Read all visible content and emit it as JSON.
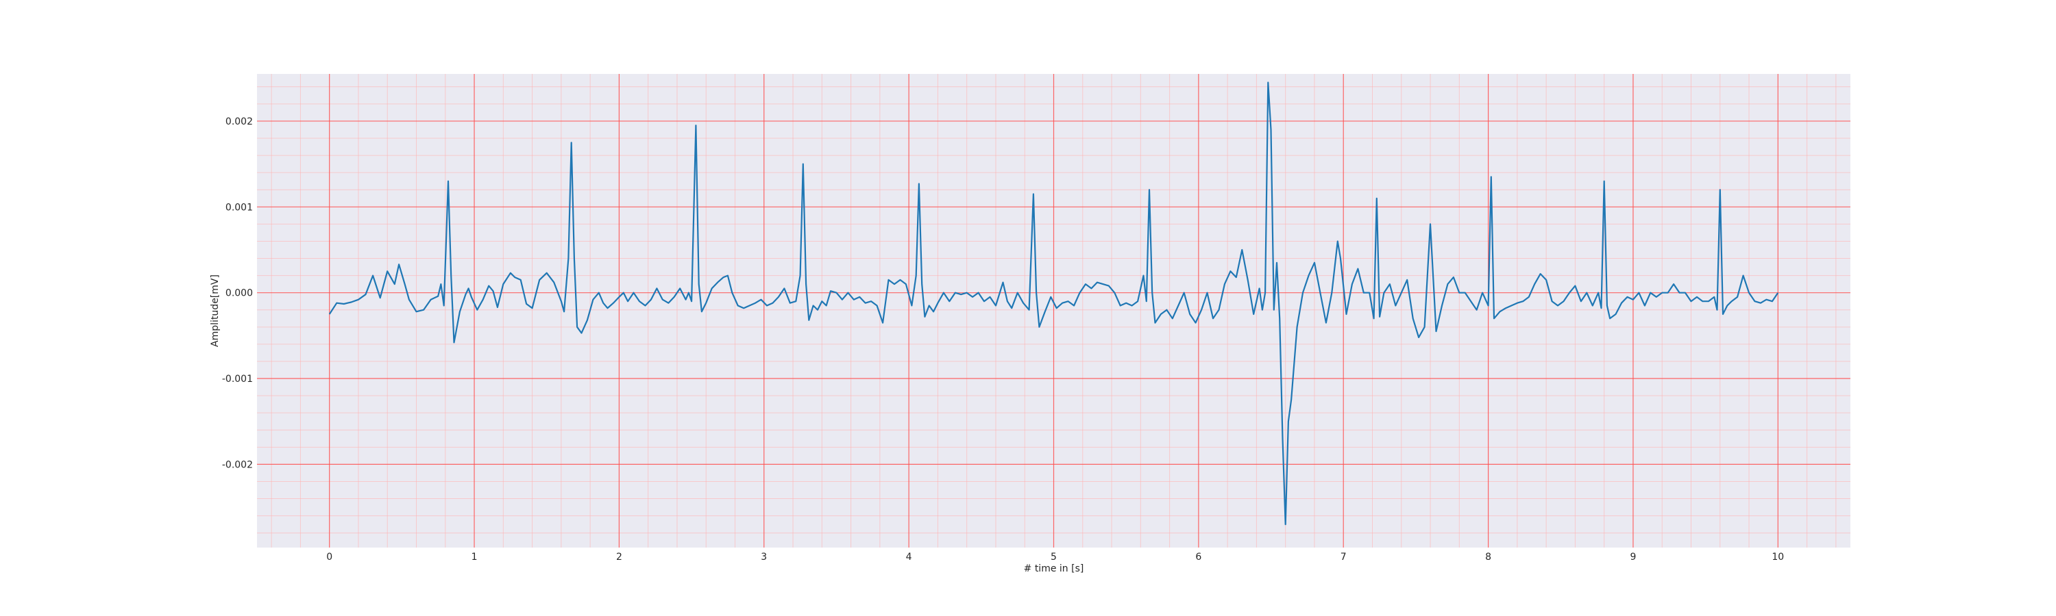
{
  "chart_data": {
    "type": "line",
    "title": "",
    "xlabel": "# time in [s]",
    "ylabel": "Amplitude[mV]",
    "xlim": [
      -0.5,
      10.5
    ],
    "ylim": [
      -0.00297,
      0.00255
    ],
    "x_ticks": [
      0,
      1,
      2,
      3,
      4,
      5,
      6,
      7,
      8,
      9,
      10
    ],
    "x_tick_labels": [
      "0",
      "1",
      "2",
      "3",
      "4",
      "5",
      "6",
      "7",
      "8",
      "9",
      "10"
    ],
    "y_ticks": [
      -0.002,
      -0.001,
      0.0,
      0.001,
      0.002
    ],
    "y_tick_labels": [
      "-0.002",
      "-0.001",
      "0.000",
      "0.001",
      "0.002"
    ],
    "grid": {
      "major": true,
      "minor": true,
      "color": "#ff4d4d"
    },
    "colors": {
      "background": "#eaeaf2",
      "line": "#1f77b4",
      "grid_major": "#ff4d4d",
      "grid_minor": "#ffb3b3"
    },
    "series": [
      {
        "points": [
          [
            0.0,
            -0.00025
          ],
          [
            0.05,
            -0.00012
          ],
          [
            0.1,
            -0.00013
          ],
          [
            0.15,
            -0.00011
          ],
          [
            0.2,
            -8e-05
          ],
          [
            0.25,
            -2e-05
          ],
          [
            0.3,
            0.0002
          ],
          [
            0.35,
            -6e-05
          ],
          [
            0.4,
            0.00025
          ],
          [
            0.45,
            0.0001
          ],
          [
            0.48,
            0.00033
          ],
          [
            0.52,
            0.0001
          ],
          [
            0.55,
            -8e-05
          ],
          [
            0.6,
            -0.00022
          ],
          [
            0.65,
            -0.0002
          ],
          [
            0.7,
            -8e-05
          ],
          [
            0.75,
            -4e-05
          ],
          [
            0.77,
            0.0001
          ],
          [
            0.79,
            -0.00015
          ],
          [
            0.82,
            0.0013
          ],
          [
            0.84,
            0.0002
          ],
          [
            0.86,
            -0.00058
          ],
          [
            0.9,
            -0.00022
          ],
          [
            0.94,
            -2e-05
          ],
          [
            0.96,
            5e-05
          ],
          [
            0.98,
            -5e-05
          ],
          [
            1.02,
            -0.0002
          ],
          [
            1.06,
            -8e-05
          ],
          [
            1.1,
            8e-05
          ],
          [
            1.13,
            2e-05
          ],
          [
            1.16,
            -0.00017
          ],
          [
            1.2,
            0.0001
          ],
          [
            1.25,
            0.00023
          ],
          [
            1.28,
            0.00018
          ],
          [
            1.32,
            0.00015
          ],
          [
            1.36,
            -0.00013
          ],
          [
            1.4,
            -0.00018
          ],
          [
            1.45,
            0.00015
          ],
          [
            1.5,
            0.00023
          ],
          [
            1.55,
            0.00012
          ],
          [
            1.6,
            -0.0001
          ],
          [
            1.62,
            -0.00022
          ],
          [
            1.65,
            0.0004
          ],
          [
            1.67,
            0.00175
          ],
          [
            1.69,
            0.0004
          ],
          [
            1.71,
            -0.0004
          ],
          [
            1.74,
            -0.00047
          ],
          [
            1.78,
            -0.00032
          ],
          [
            1.82,
            -8e-05
          ],
          [
            1.86,
            0.0
          ],
          [
            1.89,
            -0.00012
          ],
          [
            1.92,
            -0.00018
          ],
          [
            1.96,
            -0.00012
          ],
          [
            2.0,
            -5e-05
          ],
          [
            2.03,
            0.0
          ],
          [
            2.06,
            -0.0001
          ],
          [
            2.1,
            0.0
          ],
          [
            2.14,
            -0.0001
          ],
          [
            2.18,
            -0.00015
          ],
          [
            2.22,
            -8e-05
          ],
          [
            2.26,
            5e-05
          ],
          [
            2.3,
            -8e-05
          ],
          [
            2.34,
            -0.00012
          ],
          [
            2.38,
            -5e-05
          ],
          [
            2.42,
            5e-05
          ],
          [
            2.46,
            -8e-05
          ],
          [
            2.48,
            0.0
          ],
          [
            2.5,
            -0.0001
          ],
          [
            2.53,
            0.00195
          ],
          [
            2.55,
            0.0001
          ],
          [
            2.57,
            -0.00022
          ],
          [
            2.6,
            -0.00012
          ],
          [
            2.64,
            5e-05
          ],
          [
            2.68,
            0.00012
          ],
          [
            2.72,
            0.00018
          ],
          [
            2.75,
            0.0002
          ],
          [
            2.78,
            0.0
          ],
          [
            2.82,
            -0.00015
          ],
          [
            2.86,
            -0.00018
          ],
          [
            2.9,
            -0.00015
          ],
          [
            2.94,
            -0.00012
          ],
          [
            2.98,
            -8e-05
          ],
          [
            3.02,
            -0.00015
          ],
          [
            3.06,
            -0.00012
          ],
          [
            3.1,
            -5e-05
          ],
          [
            3.14,
            5e-05
          ],
          [
            3.18,
            -0.00012
          ],
          [
            3.22,
            -0.0001
          ],
          [
            3.25,
            0.0002
          ],
          [
            3.27,
            0.0015
          ],
          [
            3.29,
            0.0001
          ],
          [
            3.31,
            -0.00032
          ],
          [
            3.34,
            -0.00015
          ],
          [
            3.37,
            -0.0002
          ],
          [
            3.4,
            -0.0001
          ],
          [
            3.43,
            -0.00015
          ],
          [
            3.46,
            2e-05
          ],
          [
            3.5,
            0.0
          ],
          [
            3.54,
            -8e-05
          ],
          [
            3.58,
            0.0
          ],
          [
            3.62,
            -8e-05
          ],
          [
            3.66,
            -5e-05
          ],
          [
            3.7,
            -0.00012
          ],
          [
            3.74,
            -0.0001
          ],
          [
            3.78,
            -0.00015
          ],
          [
            3.82,
            -0.00035
          ],
          [
            3.86,
            0.00015
          ],
          [
            3.9,
            0.0001
          ],
          [
            3.94,
            0.00015
          ],
          [
            3.98,
            0.0001
          ],
          [
            4.02,
            -0.00015
          ],
          [
            4.05,
            0.0002
          ],
          [
            4.07,
            0.00127
          ],
          [
            4.09,
            0.0001
          ],
          [
            4.11,
            -0.00028
          ],
          [
            4.14,
            -0.00015
          ],
          [
            4.17,
            -0.00022
          ],
          [
            4.2,
            -0.00012
          ],
          [
            4.24,
            0.0
          ],
          [
            4.28,
            -0.0001
          ],
          [
            4.32,
            0.0
          ],
          [
            4.36,
            -2e-05
          ],
          [
            4.4,
            0.0
          ],
          [
            4.44,
            -5e-05
          ],
          [
            4.48,
            0.0
          ],
          [
            4.52,
            -0.0001
          ],
          [
            4.56,
            -5e-05
          ],
          [
            4.6,
            -0.00015
          ],
          [
            4.65,
            0.00012
          ],
          [
            4.68,
            -0.0001
          ],
          [
            4.71,
            -0.00018
          ],
          [
            4.75,
            0.0
          ],
          [
            4.79,
            -0.00012
          ],
          [
            4.83,
            -0.0002
          ],
          [
            4.86,
            0.00115
          ],
          [
            4.88,
            0.0
          ],
          [
            4.9,
            -0.0004
          ],
          [
            4.94,
            -0.00022
          ],
          [
            4.98,
            -5e-05
          ],
          [
            5.02,
            -0.00018
          ],
          [
            5.06,
            -0.00012
          ],
          [
            5.1,
            -0.0001
          ],
          [
            5.14,
            -0.00015
          ],
          [
            5.18,
            0.0
          ],
          [
            5.22,
            0.0001
          ],
          [
            5.26,
            5e-05
          ],
          [
            5.3,
            0.00012
          ],
          [
            5.34,
            0.0001
          ],
          [
            5.38,
            8e-05
          ],
          [
            5.42,
            0.0
          ],
          [
            5.46,
            -0.00015
          ],
          [
            5.5,
            -0.00012
          ],
          [
            5.54,
            -0.00015
          ],
          [
            5.58,
            -0.0001
          ],
          [
            5.62,
            0.0002
          ],
          [
            5.64,
            -0.0001
          ],
          [
            5.66,
            0.0012
          ],
          [
            5.68,
            0.0
          ],
          [
            5.7,
            -0.00035
          ],
          [
            5.74,
            -0.00025
          ],
          [
            5.78,
            -0.0002
          ],
          [
            5.82,
            -0.0003
          ],
          [
            5.86,
            -0.00015
          ],
          [
            5.9,
            0.0
          ],
          [
            5.94,
            -0.00025
          ],
          [
            5.98,
            -0.00035
          ],
          [
            6.02,
            -0.0002
          ],
          [
            6.06,
            0.0
          ],
          [
            6.1,
            -0.0003
          ],
          [
            6.14,
            -0.0002
          ],
          [
            6.18,
            0.0001
          ],
          [
            6.22,
            0.00025
          ],
          [
            6.26,
            0.00018
          ],
          [
            6.3,
            0.0005
          ],
          [
            6.34,
            0.00015
          ],
          [
            6.38,
            -0.00025
          ],
          [
            6.42,
            5e-05
          ],
          [
            6.44,
            -0.0002
          ],
          [
            6.46,
            0.0
          ],
          [
            6.48,
            0.00245
          ],
          [
            6.5,
            0.0019
          ],
          [
            6.52,
            -0.0002
          ],
          [
            6.54,
            0.00035
          ],
          [
            6.56,
            -0.0003
          ],
          [
            6.58,
            -0.0017
          ],
          [
            6.6,
            -0.0027
          ],
          [
            6.62,
            -0.0015
          ],
          [
            6.64,
            -0.00125
          ],
          [
            6.68,
            -0.0004
          ],
          [
            6.72,
            0.0
          ],
          [
            6.76,
            0.0002
          ],
          [
            6.8,
            0.00035
          ],
          [
            6.84,
            0.0
          ],
          [
            6.88,
            -0.00035
          ],
          [
            6.92,
            0.0
          ],
          [
            6.96,
            0.0006
          ],
          [
            6.98,
            0.0004
          ],
          [
            7.02,
            -0.00025
          ],
          [
            7.06,
            0.0001
          ],
          [
            7.1,
            0.00028
          ],
          [
            7.14,
            0.0
          ],
          [
            7.18,
            0.0
          ],
          [
            7.21,
            -0.0003
          ],
          [
            7.23,
            0.0011
          ],
          [
            7.25,
            -0.00028
          ],
          [
            7.28,
            0.0
          ],
          [
            7.32,
            0.0001
          ],
          [
            7.36,
            -0.00015
          ],
          [
            7.4,
            0.0
          ],
          [
            7.44,
            0.00015
          ],
          [
            7.48,
            -0.0003
          ],
          [
            7.52,
            -0.00052
          ],
          [
            7.56,
            -0.0004
          ],
          [
            7.6,
            0.0008
          ],
          [
            7.64,
            -0.00045
          ],
          [
            7.68,
            -0.00015
          ],
          [
            7.72,
            0.0001
          ],
          [
            7.76,
            0.00018
          ],
          [
            7.8,
            0.0
          ],
          [
            7.84,
            0.0
          ],
          [
            7.88,
            -0.0001
          ],
          [
            7.92,
            -0.0002
          ],
          [
            7.96,
            0.0
          ],
          [
            8.0,
            -0.00015
          ],
          [
            8.02,
            0.00135
          ],
          [
            8.04,
            -0.0003
          ],
          [
            8.08,
            -0.00022
          ],
          [
            8.12,
            -0.00018
          ],
          [
            8.16,
            -0.00015
          ],
          [
            8.2,
            -0.00012
          ],
          [
            8.24,
            -0.0001
          ],
          [
            8.28,
            -5e-05
          ],
          [
            8.32,
            0.0001
          ],
          [
            8.36,
            0.00022
          ],
          [
            8.4,
            0.00015
          ],
          [
            8.44,
            -0.0001
          ],
          [
            8.48,
            -0.00015
          ],
          [
            8.52,
            -0.0001
          ],
          [
            8.56,
            0.0
          ],
          [
            8.6,
            8e-05
          ],
          [
            8.64,
            -0.0001
          ],
          [
            8.68,
            0.0
          ],
          [
            8.72,
            -0.00015
          ],
          [
            8.76,
            0.0
          ],
          [
            8.78,
            -0.00018
          ],
          [
            8.8,
            0.0013
          ],
          [
            8.82,
            -0.00015
          ],
          [
            8.84,
            -0.0003
          ],
          [
            8.88,
            -0.00025
          ],
          [
            8.92,
            -0.00012
          ],
          [
            8.96,
            -5e-05
          ],
          [
            9.0,
            -8e-05
          ],
          [
            9.04,
            0.0
          ],
          [
            9.08,
            -0.00015
          ],
          [
            9.12,
            0.0
          ],
          [
            9.16,
            -5e-05
          ],
          [
            9.2,
            0.0
          ],
          [
            9.24,
            0.0
          ],
          [
            9.28,
            0.0001
          ],
          [
            9.32,
            0.0
          ],
          [
            9.36,
            0.0
          ],
          [
            9.4,
            -0.0001
          ],
          [
            9.44,
            -5e-05
          ],
          [
            9.48,
            -0.0001
          ],
          [
            9.52,
            -0.0001
          ],
          [
            9.56,
            -5e-05
          ],
          [
            9.58,
            -0.0002
          ],
          [
            9.6,
            0.0012
          ],
          [
            9.62,
            -0.00025
          ],
          [
            9.65,
            -0.00015
          ],
          [
            9.68,
            -0.0001
          ],
          [
            9.72,
            -5e-05
          ],
          [
            9.76,
            0.0002
          ],
          [
            9.8,
            0.0
          ],
          [
            9.84,
            -0.0001
          ],
          [
            9.88,
            -0.00012
          ],
          [
            9.92,
            -8e-05
          ],
          [
            9.96,
            -0.0001
          ],
          [
            10.0,
            0.0
          ]
        ]
      }
    ]
  }
}
